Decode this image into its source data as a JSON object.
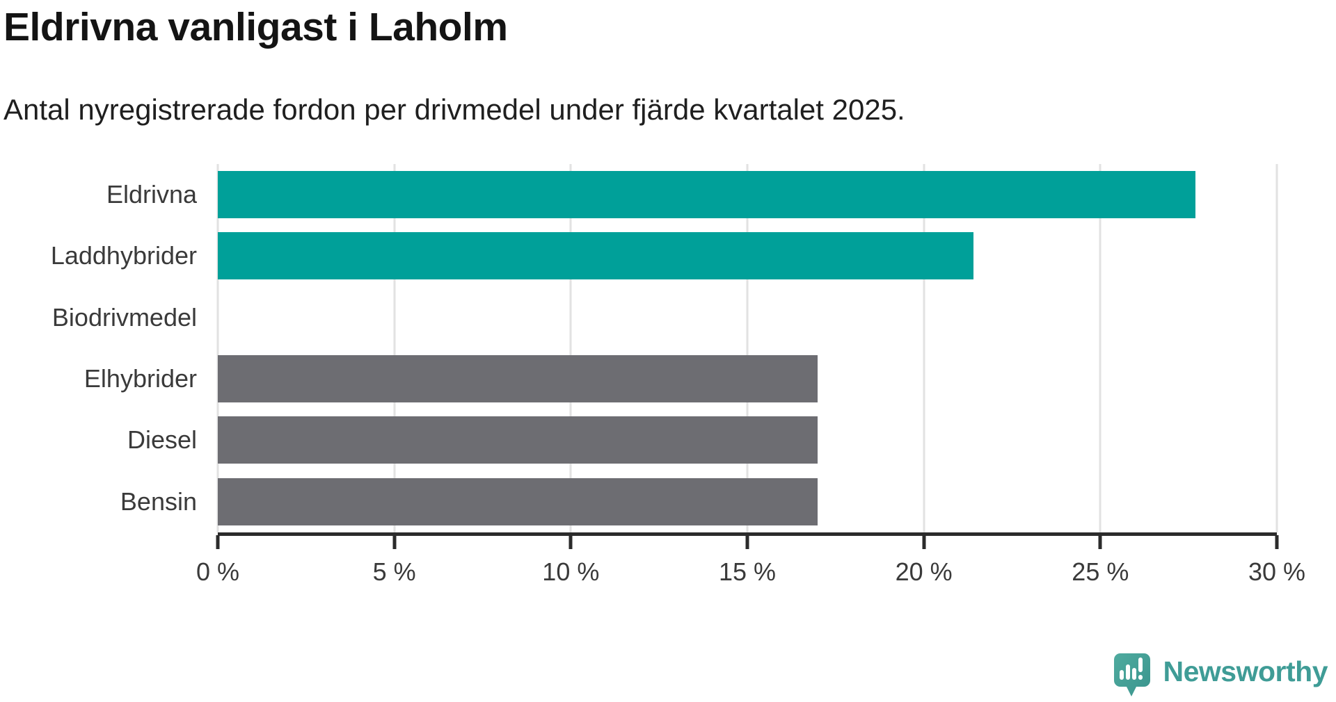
{
  "header": {
    "title": "Eldrivna vanligast i Laholm",
    "subtitle": "Antal nyregistrerade fordon per drivmedel under fjärde kvartalet 2025."
  },
  "chart_data": {
    "type": "bar",
    "orientation": "horizontal",
    "title": "Eldrivna vanligast i Laholm",
    "subtitle": "Antal nyregistrerade fordon per drivmedel under fjärde kvartalet 2025.",
    "categories": [
      "Eldrivna",
      "Laddhybrider",
      "Biodrivmedel",
      "Elhybrider",
      "Diesel",
      "Bensin"
    ],
    "values": [
      27.7,
      21.4,
      0,
      17,
      17,
      17
    ],
    "unit": "%",
    "xlim": [
      0,
      30
    ],
    "x_ticks": [
      "0 %",
      "5 %",
      "10 %",
      "15 %",
      "20 %",
      "25 %",
      "30 %"
    ],
    "grid": true,
    "legend": "none",
    "bar_colors": [
      "#00a099",
      "#00a099",
      "#00a099",
      "#6d6d72",
      "#6d6d72",
      "#6d6d72"
    ],
    "highlight_color": "#00a099",
    "default_color": "#6d6d72",
    "gridline_color": "#e2e2e2",
    "axis_color": "#2b2b2b"
  },
  "footer": {
    "brand": "Newsworthy",
    "brand_color": "#3f9c96",
    "icon_color": "#45a29b"
  }
}
